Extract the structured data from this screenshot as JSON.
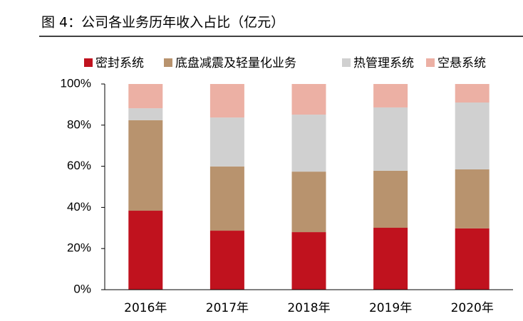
{
  "chart_data": {
    "type": "stacked_bar",
    "title": "图 4：公司各业务历年收入占比（亿元）",
    "categories": [
      "2016年",
      "2017年",
      "2018年",
      "2019年",
      "2020年"
    ],
    "series": [
      {
        "name": "密封系统",
        "color": "#c0121e",
        "values": [
          38.4,
          28.7,
          28.0,
          30.1,
          29.8
        ]
      },
      {
        "name": "底盘减震及轻量化业务",
        "color": "#b8936e",
        "values": [
          44.0,
          31.2,
          29.4,
          27.7,
          28.7
        ]
      },
      {
        "name": "热管理系统",
        "color": "#d0d0d0",
        "values": [
          5.8,
          23.8,
          27.7,
          30.8,
          32.5
        ]
      },
      {
        "name": "空悬系统",
        "color": "#ecb0a4",
        "values": [
          11.8,
          16.3,
          14.9,
          11.4,
          9.0
        ]
      }
    ],
    "ylim": [
      0,
      100
    ],
    "yticks": [
      {
        "value": 0,
        "label": "0%"
      },
      {
        "value": 20,
        "label": "20%"
      },
      {
        "value": 40,
        "label": "40%"
      },
      {
        "value": 60,
        "label": "60%"
      },
      {
        "value": 80,
        "label": "80%"
      },
      {
        "value": 100,
        "label": "100%"
      }
    ],
    "legend": "top"
  }
}
